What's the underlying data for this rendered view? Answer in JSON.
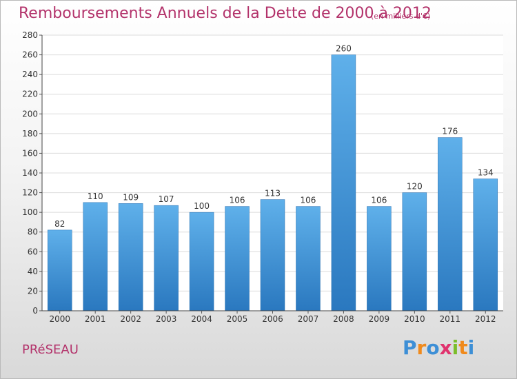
{
  "header": {
    "title": "Remboursements Annuels de la Dette de 2000 à 2012",
    "subtitle": "(en milliers d'€)"
  },
  "footer": {
    "commune": "PRéSEAU",
    "logo": {
      "text": "Proxiti",
      "letters": [
        {
          "ch": "P",
          "color": "#3d8fd6"
        },
        {
          "ch": "r",
          "color": "#f08a1c"
        },
        {
          "ch": "o",
          "color": "#3d8fd6"
        },
        {
          "ch": "x",
          "color": "#e0336e"
        },
        {
          "ch": "i",
          "color": "#7bbd2a"
        },
        {
          "ch": "t",
          "color": "#f08a1c"
        },
        {
          "ch": "i",
          "color": "#3d8fd6"
        }
      ]
    }
  },
  "colors": {
    "title": "#b3336b",
    "bar_top": "#5fb0ea",
    "bar_bottom": "#2a78bf"
  },
  "chart_data": {
    "type": "bar",
    "categories": [
      "2000",
      "2001",
      "2002",
      "2003",
      "2004",
      "2005",
      "2006",
      "2007",
      "2008",
      "2009",
      "2010",
      "2011",
      "2012"
    ],
    "values": [
      82,
      110,
      109,
      107,
      100,
      106,
      113,
      106,
      260,
      106,
      120,
      176,
      134
    ],
    "ylim": [
      0,
      280
    ],
    "yticks": [
      0,
      20,
      40,
      60,
      80,
      100,
      120,
      140,
      160,
      180,
      200,
      220,
      240,
      260,
      280
    ],
    "grid": true
  }
}
